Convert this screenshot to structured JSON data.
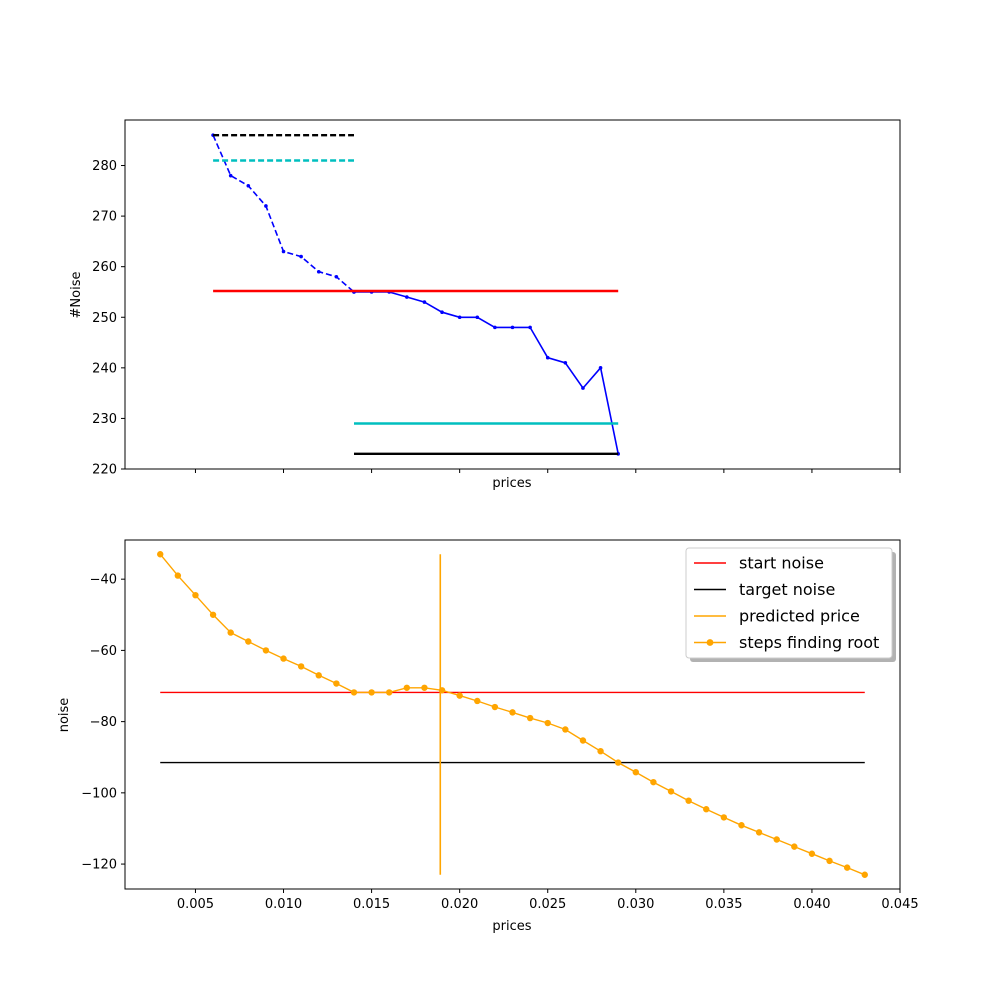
{
  "chart_data": [
    {
      "type": "line",
      "title": "",
      "xlabel": "prices",
      "ylabel": "#Noise",
      "xlim": [
        0.001,
        0.045
      ],
      "ylim": [
        220,
        289
      ],
      "show_x_tick_labels": false,
      "yticks": [
        220,
        230,
        240,
        250,
        260,
        270,
        280
      ],
      "grid": false,
      "series": [
        {
          "color": "#0000ff",
          "style": "dashed",
          "marker": "dot",
          "x": [
            0.006,
            0.007,
            0.008,
            0.009,
            0.01,
            0.011,
            0.012,
            0.013,
            0.014
          ],
          "y": [
            286,
            278,
            276,
            272,
            263,
            262,
            259,
            258,
            255
          ]
        },
        {
          "color": "#0000ff",
          "style": "solid",
          "marker": "dot",
          "x": [
            0.014,
            0.015,
            0.016,
            0.017,
            0.018,
            0.019,
            0.02,
            0.021,
            0.022,
            0.023,
            0.024,
            0.025,
            0.026,
            0.027,
            0.028,
            0.029
          ],
          "y": [
            255,
            255,
            255,
            254,
            253,
            251,
            250,
            250,
            248,
            248,
            248,
            242,
            241,
            236,
            240,
            223
          ]
        },
        {
          "color": "#000000",
          "style": "dashed",
          "x": [
            0.006,
            0.014
          ],
          "y": [
            286,
            286
          ]
        },
        {
          "color": "#00bfbf",
          "style": "dashed",
          "x": [
            0.006,
            0.014
          ],
          "y": [
            281,
            281
          ]
        },
        {
          "color": "#ff0000",
          "style": "solid",
          "x": [
            0.006,
            0.029
          ],
          "y": [
            255.2,
            255.2
          ]
        },
        {
          "color": "#00bfbf",
          "style": "solid",
          "x": [
            0.014,
            0.029
          ],
          "y": [
            229,
            229
          ]
        },
        {
          "color": "#000000",
          "style": "solid",
          "x": [
            0.014,
            0.029
          ],
          "y": [
            223,
            223
          ]
        }
      ]
    },
    {
      "type": "line",
      "title": "",
      "xlabel": "prices",
      "ylabel": "noise",
      "xlim": [
        0.001,
        0.045
      ],
      "ylim": [
        -127,
        -29
      ],
      "xticks": [
        0.005,
        0.01,
        0.015,
        0.02,
        0.025,
        0.03,
        0.035,
        0.04,
        0.045
      ],
      "xtick_labels": [
        "0.005",
        "0.010",
        "0.015",
        "0.020",
        "0.025",
        "0.030",
        "0.035",
        "0.040",
        "0.045"
      ],
      "yticks": [
        -40,
        -60,
        -80,
        -100,
        -120
      ],
      "grid": false,
      "legend": {
        "placement": "top-right",
        "entries": [
          {
            "label": "start noise",
            "color": "#ff0000",
            "marker": false
          },
          {
            "label": "target noise",
            "color": "#000000",
            "marker": false
          },
          {
            "label": "predicted price",
            "color": "#ffa500",
            "marker": false
          },
          {
            "label": "steps finding root",
            "color": "#ffa500",
            "marker": true
          }
        ]
      },
      "start_noise": {
        "y": -71.8,
        "x": [
          0.003,
          0.043
        ]
      },
      "target_noise": {
        "y": -91.5,
        "x": [
          0.003,
          0.043
        ]
      },
      "predicted_price": {
        "x": 0.0189,
        "y": [
          -123,
          -33
        ]
      },
      "steps": {
        "x": [
          0.003,
          0.004,
          0.005,
          0.006,
          0.007,
          0.008,
          0.009,
          0.01,
          0.011,
          0.012,
          0.013,
          0.014,
          0.015,
          0.016,
          0.017,
          0.018,
          0.019,
          0.02,
          0.021,
          0.022,
          0.023,
          0.024,
          0.025,
          0.026,
          0.027,
          0.028,
          0.029,
          0.03,
          0.031,
          0.032,
          0.033,
          0.034,
          0.035,
          0.036,
          0.037,
          0.038,
          0.039,
          0.04,
          0.041,
          0.042,
          0.043
        ],
        "y": [
          -33,
          -39,
          -44.5,
          -50,
          -55,
          -57.5,
          -60,
          -62.3,
          -64.5,
          -67,
          -69.3,
          -71.8,
          -71.8,
          -71.8,
          -70.5,
          -70.5,
          -71.2,
          -72.7,
          -74.2,
          -75.9,
          -77.4,
          -79,
          -80.4,
          -82.2,
          -85.3,
          -88.3,
          -91.5,
          -94.2,
          -97,
          -99.6,
          -102.2,
          -104.6,
          -106.9,
          -109.1,
          -111.1,
          -113.1,
          -115.1,
          -117.1,
          -119.1,
          -121,
          -123
        ]
      }
    }
  ]
}
